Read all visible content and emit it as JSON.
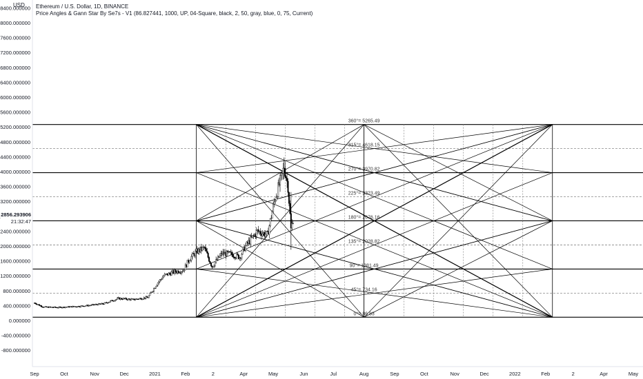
{
  "header": {
    "title": "Ethereum / U.S. Dollar, 1D, BINANCE",
    "indicator": "Price Angles & Gann Star By Se7s - V1  (86.827441, 1000, UP, 04-Square, black, 2, 50, gray, blue, 0, 75, Current)",
    "currency": "USD"
  },
  "last_price": {
    "value": "2856.293906",
    "countdown": "21:32:47"
  },
  "colors": {
    "background": "#ffffff",
    "candle_up": "#ffffff",
    "candle_down": "#000000",
    "gann_lines": "#000000",
    "gann_dashed": "#888888"
  },
  "chart_data": {
    "type": "candlestick",
    "title": "Ethereum / U.S. Dollar, 1D, BINANCE",
    "ylim": [
      -900,
      8400
    ],
    "y_ticks": [
      -800,
      -400,
      0,
      400,
      800,
      1200,
      1600,
      2000,
      2400,
      2800,
      3200,
      3600,
      4000,
      4400,
      4800,
      5200,
      5600,
      6000,
      6400,
      6800,
      7200,
      7600,
      8000,
      8400
    ],
    "y_tick_labels": [
      "-800.000000",
      "-400.000000",
      "0.000000",
      "400.000000",
      "800.000000",
      "1200.000000",
      "1600.000000",
      "2000.000000",
      "2400.000000",
      "2800.000000",
      "3200.000000",
      "3600.000000",
      "4000.000000",
      "4400.000000",
      "4800.000000",
      "5200.000000",
      "5600.000000",
      "6000.000000",
      "6400.000000",
      "6800.000000",
      "7200.000000",
      "7600.000000",
      "8000.000000",
      "8400.000000"
    ],
    "x_ticks": [
      {
        "label": "Sep",
        "date": "2020-09-01"
      },
      {
        "label": "Oct",
        "date": "2020-10-01"
      },
      {
        "label": "Nov",
        "date": "2020-11-01"
      },
      {
        "label": "Dec",
        "date": "2020-12-01"
      },
      {
        "label": "2021",
        "date": "2021-01-01"
      },
      {
        "label": "Feb",
        "date": "2021-02-01"
      },
      {
        "label": "2",
        "date": "2021-03-01"
      },
      {
        "label": "Apr",
        "date": "2021-04-01"
      },
      {
        "label": "May",
        "date": "2021-05-01"
      },
      {
        "label": "Jun",
        "date": "2021-06-01"
      },
      {
        "label": "Jul",
        "date": "2021-07-01"
      },
      {
        "label": "Aug",
        "date": "2021-08-01"
      },
      {
        "label": "Sep",
        "date": "2021-09-01"
      },
      {
        "label": "Oct",
        "date": "2021-10-01"
      },
      {
        "label": "Nov",
        "date": "2021-11-01"
      },
      {
        "label": "Dec",
        "date": "2021-12-01"
      },
      {
        "label": "2022",
        "date": "2022-01-01"
      },
      {
        "label": "Feb",
        "date": "2022-02-01"
      },
      {
        "label": "2",
        "date": "2022-03-01"
      },
      {
        "label": "Apr",
        "date": "2022-04-01"
      },
      {
        "label": "May",
        "date": "2022-05-01"
      }
    ],
    "price_path": [
      {
        "date": "2020-09-01",
        "close": 470
      },
      {
        "date": "2020-09-10",
        "close": 360
      },
      {
        "date": "2020-09-25",
        "close": 350
      },
      {
        "date": "2020-10-10",
        "close": 370
      },
      {
        "date": "2020-10-25",
        "close": 400
      },
      {
        "date": "2020-11-10",
        "close": 450
      },
      {
        "date": "2020-11-25",
        "close": 590
      },
      {
        "date": "2020-12-10",
        "close": 560
      },
      {
        "date": "2020-12-25",
        "close": 620
      },
      {
        "date": "2021-01-03",
        "close": 980
      },
      {
        "date": "2021-01-10",
        "close": 1200
      },
      {
        "date": "2021-01-20",
        "close": 1300
      },
      {
        "date": "2021-01-30",
        "close": 1350
      },
      {
        "date": "2021-02-05",
        "close": 1650
      },
      {
        "date": "2021-02-12",
        "close": 1850
      },
      {
        "date": "2021-02-20",
        "close": 1950
      },
      {
        "date": "2021-02-28",
        "close": 1450
      },
      {
        "date": "2021-03-10",
        "close": 1800
      },
      {
        "date": "2021-03-20",
        "close": 1780
      },
      {
        "date": "2021-03-28",
        "close": 1700
      },
      {
        "date": "2021-04-03",
        "close": 2000
      },
      {
        "date": "2021-04-15",
        "close": 2400
      },
      {
        "date": "2021-04-25",
        "close": 2300
      },
      {
        "date": "2021-05-03",
        "close": 3300
      },
      {
        "date": "2021-05-10",
        "close": 3900
      },
      {
        "date": "2021-05-12",
        "close": 4150
      },
      {
        "date": "2021-05-16",
        "close": 3600
      },
      {
        "date": "2021-05-19",
        "close": 2450
      },
      {
        "date": "2021-05-22",
        "close": 2850
      }
    ],
    "gann_levels": [
      {
        "label": "0°= 86.83",
        "value": 86.83,
        "style": "solid"
      },
      {
        "label": "45°= 734.16",
        "value": 734.16,
        "style": "dashed"
      },
      {
        "label": "90°= 1381.49",
        "value": 1381.49,
        "style": "solid"
      },
      {
        "label": "135°= 2028.82",
        "value": 2028.82,
        "style": "dashed"
      },
      {
        "label": "180°= 2676.16",
        "value": 2676.16,
        "style": "solid"
      },
      {
        "label": "225°= 3323.49",
        "value": 3323.49,
        "style": "dashed"
      },
      {
        "label": "270°= 3970.82",
        "value": 3970.82,
        "style": "solid"
      },
      {
        "label": "315°= 4618.15",
        "value": 4618.15,
        "style": "dashed"
      },
      {
        "label": "360°= 5265.49",
        "value": 5265.49,
        "style": "solid"
      }
    ],
    "gann_square": {
      "start": "2021-02-12",
      "end": "2022-02-08",
      "mid": "2021-08-01",
      "low": 86.83,
      "mid_price": 2676.16,
      "high": 5265.49
    }
  }
}
